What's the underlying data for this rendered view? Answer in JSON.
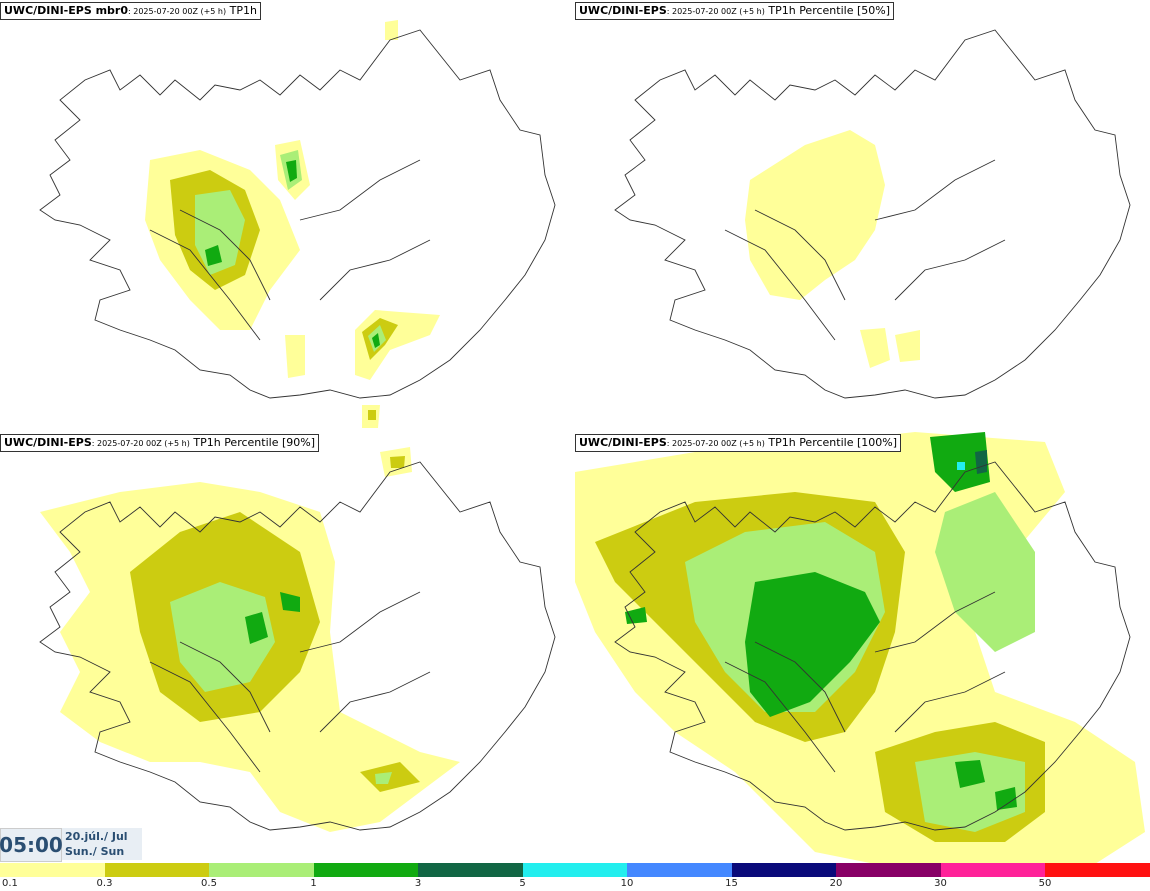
{
  "panels": [
    {
      "title_bold": "UWC/DINI-EPS mbr0",
      "title_small": ": 2025-07-20 00Z (+5 h)",
      "title_rest": " TP1h"
    },
    {
      "title_bold": "UWC/DINI-EPS",
      "title_small": ": 2025-07-20 00Z (+5 h)",
      "title_rest": " TP1h Percentile [50%]"
    },
    {
      "title_bold": "UWC/DINI-EPS",
      "title_small": ": 2025-07-20 00Z (+5 h)",
      "title_rest": " TP1h Percentile [90%]"
    },
    {
      "title_bold": "UWC/DINI-EPS",
      "title_small": ": 2025-07-20 00Z (+5 h)",
      "title_rest": " TP1h Percentile [100%]"
    }
  ],
  "time": {
    "clock": "05:00",
    "date_line1": "20.júl./ Jul",
    "date_line2": "Sun./ Sun"
  },
  "legend": {
    "colors": [
      "#ffff99",
      "#cccc11",
      "#aaee77",
      "#11aa11",
      "#116644",
      "#22eeee",
      "#4488ff",
      "#0a0a7a",
      "#880066",
      "#ff2299",
      "#ff1111"
    ],
    "labels": [
      "0.1",
      "0.3",
      "0.5",
      "1",
      "3",
      "5",
      "10",
      "15",
      "20",
      "30",
      "50"
    ]
  }
}
